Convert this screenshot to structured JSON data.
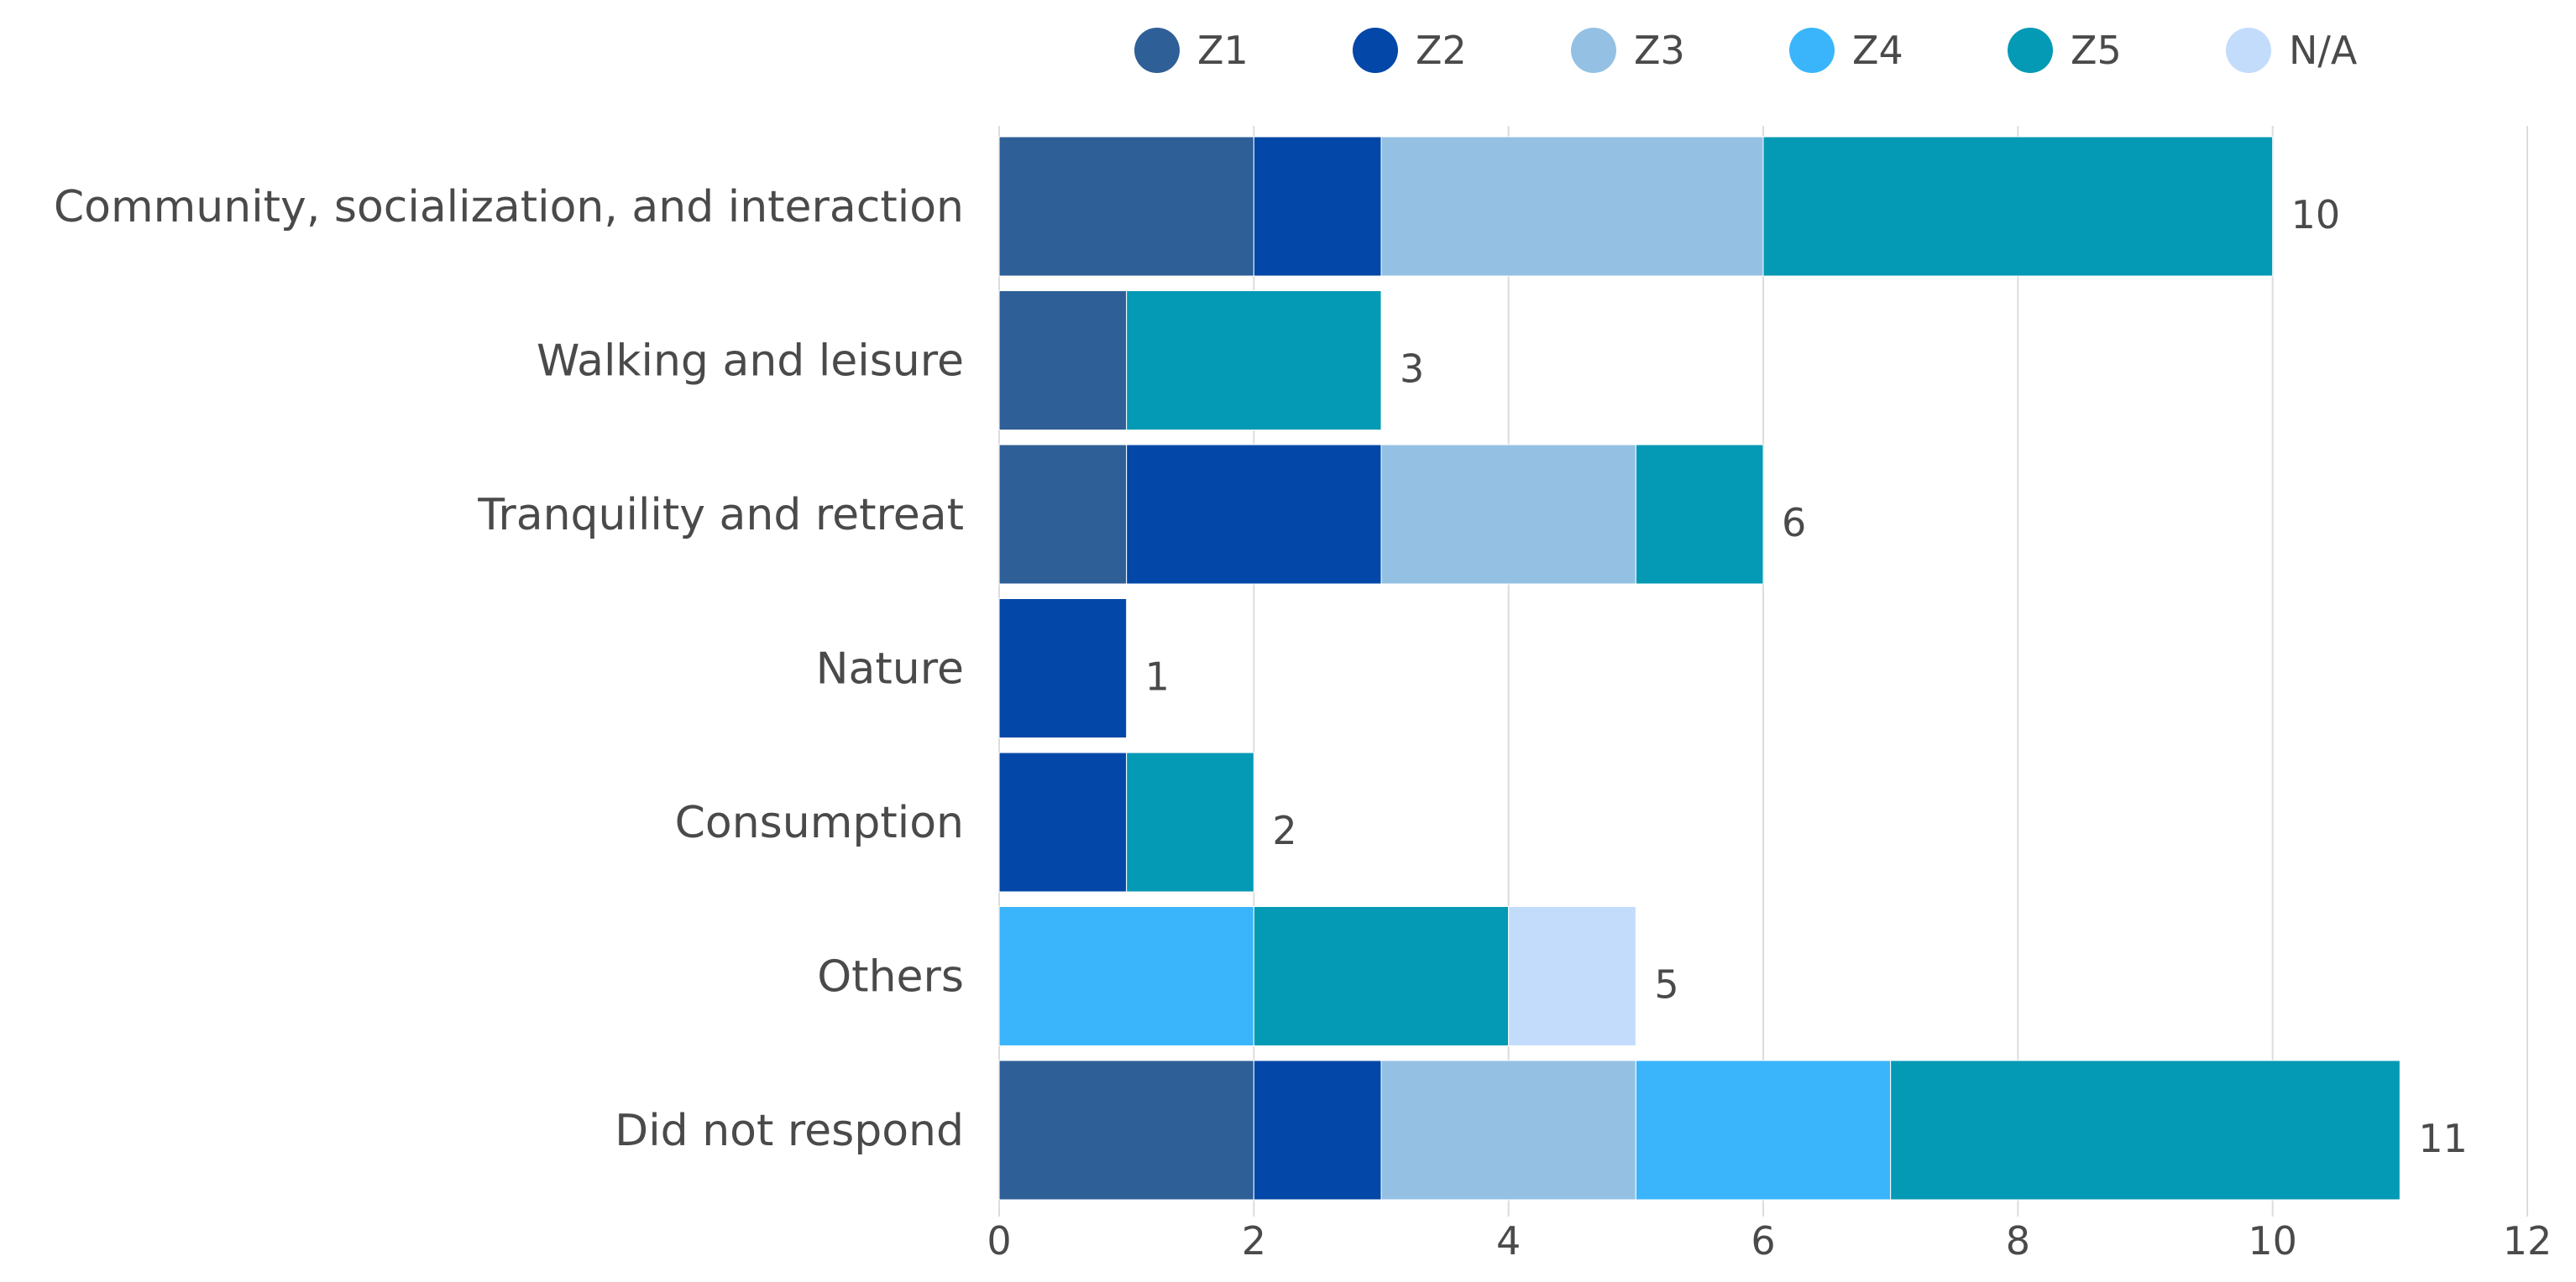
{
  "chart_data": {
    "type": "bar",
    "orientation": "horizontal",
    "stacked": true,
    "categories": [
      "Community, socialization, and interaction",
      "Walking and leisure",
      "Tranquility and retreat",
      "Nature",
      "Consumption",
      "Others",
      "Did not respond"
    ],
    "series": [
      {
        "name": "Z1",
        "color": "#2f5f97",
        "values": [
          2,
          1,
          1,
          0,
          0,
          0,
          2
        ]
      },
      {
        "name": "Z2",
        "color": "#0347a8",
        "values": [
          1,
          0,
          2,
          1,
          1,
          0,
          1
        ]
      },
      {
        "name": "Z3",
        "color": "#94c1e3",
        "values": [
          3,
          0,
          2,
          0,
          0,
          0,
          2
        ]
      },
      {
        "name": "Z4",
        "color": "#3ab5fb",
        "values": [
          0,
          0,
          0,
          0,
          0,
          2,
          2
        ]
      },
      {
        "name": "Z5",
        "color": "#0499b4",
        "values": [
          4,
          2,
          1,
          0,
          1,
          2,
          4
        ]
      },
      {
        "name": "N/A",
        "color": "#c4dcfb",
        "values": [
          0,
          0,
          0,
          0,
          0,
          1,
          0
        ]
      }
    ],
    "totals": [
      "10",
      "3",
      "6",
      "1",
      "2",
      "5",
      "11"
    ],
    "xlim": [
      0,
      12
    ],
    "xticks": [
      "0",
      "2",
      "4",
      "6",
      "8",
      "10",
      "12"
    ],
    "grid": "vertical",
    "legend_position": "top-right",
    "title": "",
    "xlabel": "",
    "ylabel": ""
  }
}
